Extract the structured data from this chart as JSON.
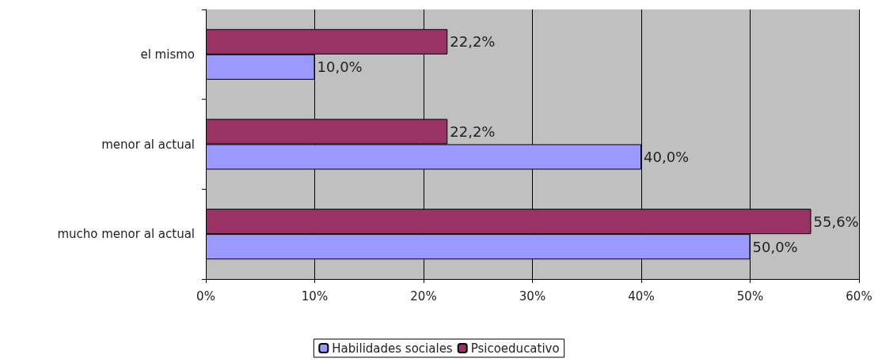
{
  "chart_data": {
    "type": "bar",
    "orientation": "horizontal",
    "categories": [
      "el mismo",
      "menor al actual",
      "mucho menor al actual"
    ],
    "series": [
      {
        "name": "Habilidades sociales",
        "color": "#9999ff",
        "values": [
          10.0,
          40.0,
          50.0
        ],
        "value_labels": [
          "10,0%",
          "40,0%",
          "50,0%"
        ]
      },
      {
        "name": "Psicoeducativo",
        "color": "#993366",
        "values": [
          22.2,
          22.2,
          55.6
        ],
        "value_labels": [
          "22,2%",
          "22,2%",
          "55,6%"
        ]
      }
    ],
    "xlim": [
      0,
      60
    ],
    "xticks": [
      {
        "value": 0,
        "label": "0%"
      },
      {
        "value": 10,
        "label": "10%"
      },
      {
        "value": 20,
        "label": "20%"
      },
      {
        "value": 30,
        "label": "30%"
      },
      {
        "value": 40,
        "label": "40%"
      },
      {
        "value": 50,
        "label": "50%"
      },
      {
        "value": 60,
        "label": "60%"
      }
    ],
    "grid": "x",
    "legend": "bottom"
  }
}
